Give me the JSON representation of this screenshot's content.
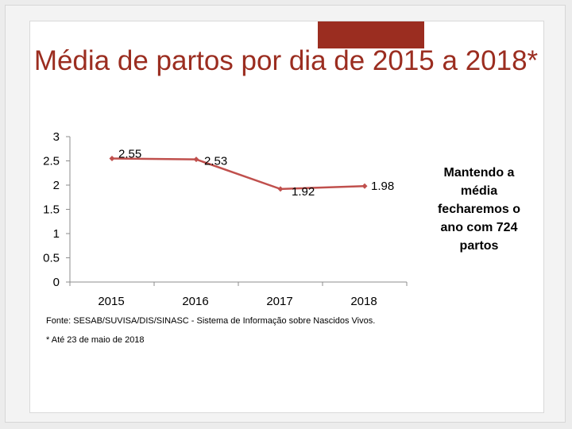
{
  "slide": {
    "title": "Média de partos por dia de 2015 a 2018*",
    "side_note": "Mantendo a média fecharemos o ano com 724 partos",
    "source": "Fonte: SESAB/SUVISA/DIS/SINASC - Sistema de Informação sobre Nascidos Vivos.",
    "footnote": "* Até 23 de maio de 2018"
  },
  "colors": {
    "accent": "#9b2d20",
    "series": "#c0504d",
    "axis": "#8c8c8c"
  },
  "chart_data": {
    "type": "line",
    "title": "Média de partos por dia de 2015 a 2018*",
    "categories": [
      "2015",
      "2016",
      "2017",
      "2018"
    ],
    "series": [
      {
        "name": "Média de partos por dia",
        "values": [
          2.55,
          2.53,
          1.92,
          1.98
        ]
      }
    ],
    "data_labels": [
      "2.55",
      "2.53",
      "1.92",
      "1.98"
    ],
    "yticks": [
      0,
      0.5,
      1,
      1.5,
      2,
      2.5,
      3
    ],
    "ytick_labels": [
      "0",
      "0.5",
      "1",
      "1.5",
      "2",
      "2.5",
      "3"
    ],
    "ylim": [
      0,
      3
    ],
    "xlabel": "",
    "ylabel": "",
    "grid": false,
    "legend": "none"
  }
}
